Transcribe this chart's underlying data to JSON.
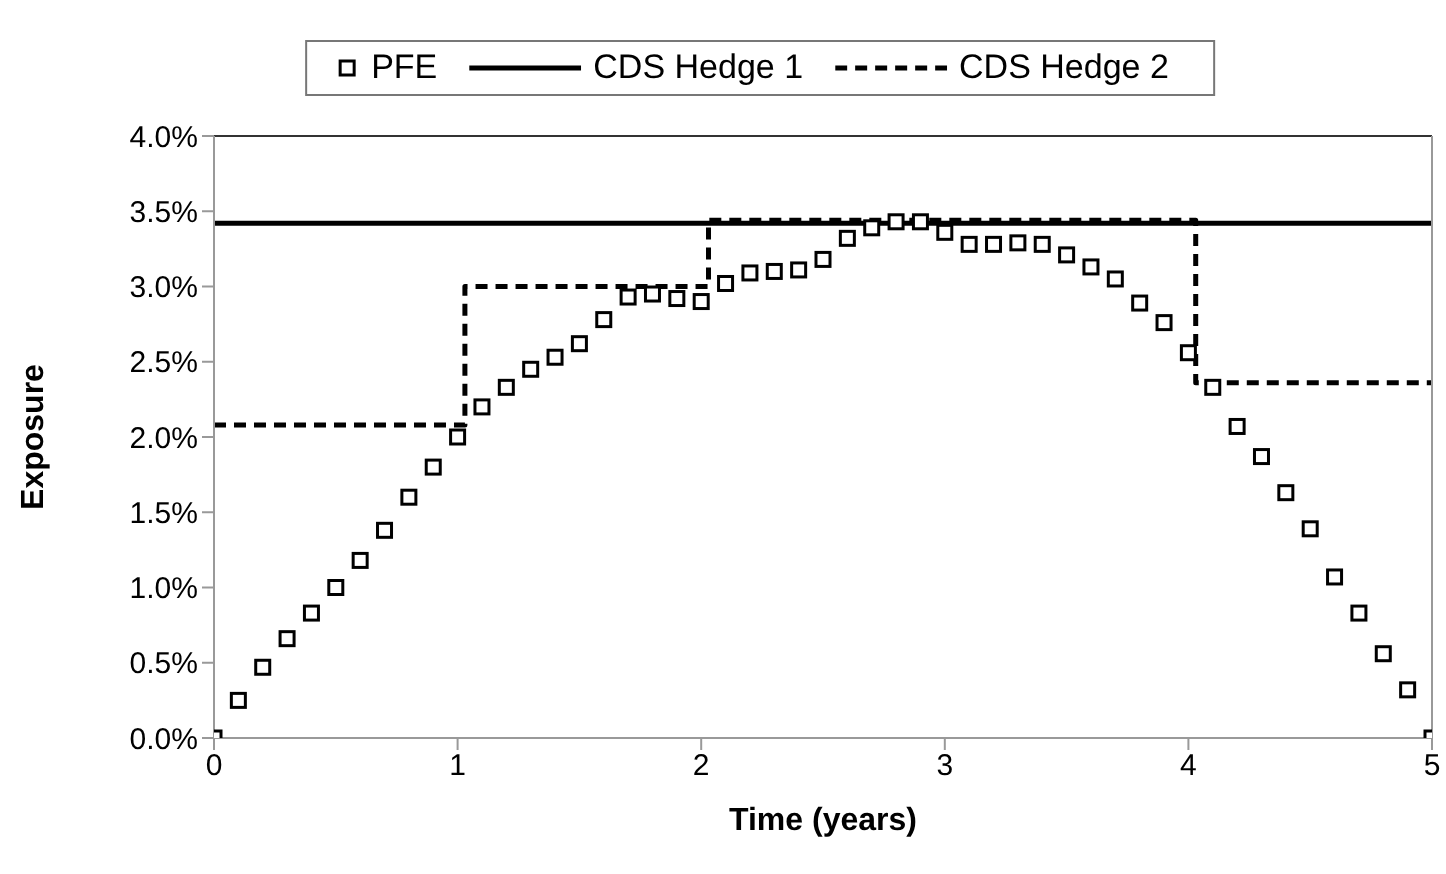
{
  "chart_data": {
    "type": "line",
    "xlabel": "Time (years)",
    "ylabel": "Exposure",
    "xlim": [
      0,
      5
    ],
    "xticks": [
      0,
      1,
      2,
      3,
      4,
      5
    ],
    "ylim": [
      0,
      4
    ],
    "yticks": [
      {
        "value": 0,
        "label": "0.0%"
      },
      {
        "value": 0.5,
        "label": "0.5%"
      },
      {
        "value": 1,
        "label": "1.0%"
      },
      {
        "value": 1.5,
        "label": "1.5%"
      },
      {
        "value": 2,
        "label": "2.0%"
      },
      {
        "value": 2.5,
        "label": "2.5%"
      },
      {
        "value": 3,
        "label": "3.0%"
      },
      {
        "value": 3.5,
        "label": "3.5%"
      },
      {
        "value": 4,
        "label": "4.0%"
      }
    ],
    "legend": "top",
    "series": [
      {
        "name": "PFE",
        "type": "scatter",
        "marker": "square",
        "color": "#000000",
        "x": [
          0,
          0.1,
          0.2,
          0.3,
          0.4,
          0.5,
          0.6,
          0.7,
          0.8,
          0.9,
          1,
          1.1,
          1.2,
          1.3,
          1.4,
          1.5,
          1.6,
          1.7,
          1.8,
          1.9,
          2,
          2.1,
          2.2,
          2.3,
          2.4,
          2.5,
          2.6,
          2.7,
          2.8,
          2.9,
          3,
          3.1,
          3.2,
          3.3,
          3.4,
          3.5,
          3.6,
          3.7,
          3.8,
          3.9,
          4,
          4.1,
          4.2,
          4.3,
          4.4,
          4.5,
          4.6,
          4.7,
          4.8,
          4.9,
          5
        ],
        "values": [
          0,
          0.25,
          0.47,
          0.66,
          0.83,
          1.0,
          1.18,
          1.38,
          1.6,
          1.8,
          2.0,
          2.2,
          2.33,
          2.45,
          2.53,
          2.62,
          2.78,
          2.93,
          2.95,
          2.92,
          2.9,
          3.02,
          3.09,
          3.1,
          3.11,
          3.18,
          3.32,
          3.39,
          3.43,
          3.43,
          3.36,
          3.28,
          3.28,
          3.29,
          3.28,
          3.21,
          3.13,
          3.05,
          2.89,
          2.76,
          2.56,
          2.33,
          2.07,
          1.87,
          1.63,
          1.39,
          1.07,
          0.83,
          0.56,
          0.32,
          0
        ]
      },
      {
        "name": "CDS Hedge 1",
        "line_style": "solid",
        "marker": "none",
        "color": "#000000",
        "x": [
          0,
          5
        ],
        "values": [
          3.42,
          3.42
        ]
      },
      {
        "name": "CDS Hedge 2",
        "line_style": "dashed",
        "marker": "none",
        "color": "#000000",
        "x": [
          0,
          1.03,
          1.03,
          2.03,
          2.03,
          4.03,
          4.03,
          5
        ],
        "values": [
          2.08,
          2.08,
          3.0,
          3.0,
          3.44,
          3.44,
          2.36,
          2.36
        ]
      }
    ]
  }
}
